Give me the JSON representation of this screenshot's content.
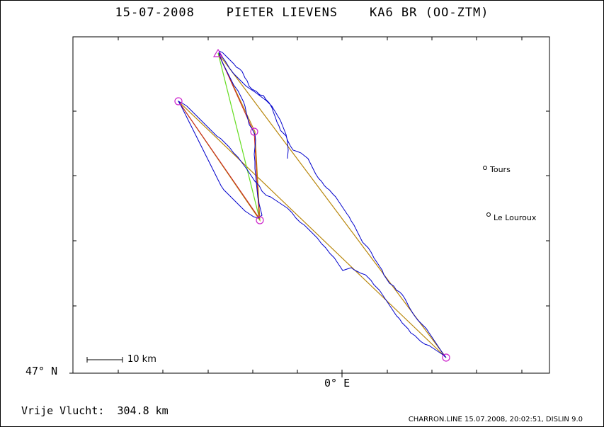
{
  "header": {
    "title": "15-07-2008    PIETER LIEVENS    KA6 BR (OO-ZTM)"
  },
  "axes": {
    "lat_label": "47° N",
    "lon_label": "0° E"
  },
  "scale_bar": {
    "label": "10 km"
  },
  "places": [
    {
      "name": "Tours"
    },
    {
      "name": "Le Louroux"
    }
  ],
  "stats": {
    "free_flight": "Vrije Vlucht:  304.8 km"
  },
  "footer": {
    "info": "CHARRON.LINE 15.07.2008, 20:02:51, DISLIN 9.0"
  },
  "colors": {
    "track": "#0000cc",
    "task_line": "#b8860b",
    "closing_line": "#66dd22",
    "route_line": "#cc2222",
    "turnpoint": "#cc22cc"
  }
}
